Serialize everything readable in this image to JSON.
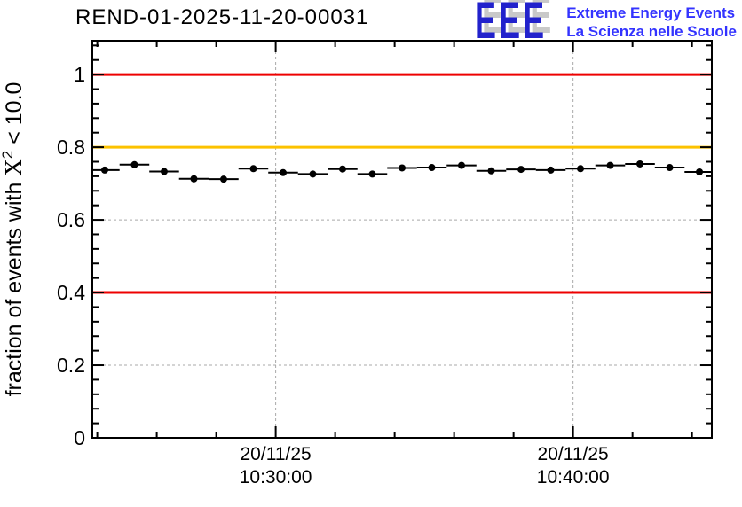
{
  "page": {
    "title": "REND-01-2025-11-20-00031"
  },
  "logo": {
    "letters": "EEE",
    "line1": "Extreme Energy Events",
    "line2": "La Scienza nelle Scuole",
    "letter_color": "#2222cc",
    "text_color": "#3333ff",
    "shadow_color": "#c9c9c9"
  },
  "chart_data": {
    "type": "scatter",
    "title": "REND-01-2025-11-20-00031",
    "xlabel": "",
    "ylabel": "fraction of events with X² < 10.0",
    "ylabel_parts": {
      "pre": "fraction of events with ",
      "x": "X",
      "sup": "2",
      "post": " < 10.0"
    },
    "ylim": [
      0,
      1.093
    ],
    "x_axis_start_time": "20/11/25 10:23:50",
    "x_axis_end_time": "20/11/25 10:44:40",
    "x_range_seconds": [
      0,
      1250
    ],
    "x_major_ticks": [
      {
        "seconds": 370,
        "label_line1": "20/11/25",
        "label_line2": "10:30:00"
      },
      {
        "seconds": 970,
        "label_line1": "20/11/25",
        "label_line2": "10:40:00"
      }
    ],
    "x_minor_ticks_seconds": [
      10,
      130,
      250,
      490,
      610,
      730,
      850,
      1090,
      1210
    ],
    "y_major_ticks": [
      {
        "value": 0,
        "label": "0"
      },
      {
        "value": 0.2,
        "label": "0.2"
      },
      {
        "value": 0.4,
        "label": "0.4"
      },
      {
        "value": 0.6,
        "label": "0.6"
      },
      {
        "value": 0.8,
        "label": "0.8"
      },
      {
        "value": 1,
        "label": "1"
      }
    ],
    "y_minor_step": 0.04,
    "grid": {
      "horizontal_values": [
        0.2,
        0.4,
        0.6,
        0.8,
        1.0
      ],
      "vertical_seconds": [
        370,
        970
      ],
      "color": "#a9a9a9",
      "style": "dashed"
    },
    "reference_lines": [
      {
        "value": 1.0,
        "color": "#ee0000"
      },
      {
        "value": 0.8,
        "color": "#fcc200"
      },
      {
        "value": 0.4,
        "color": "#ee0000"
      }
    ],
    "series": [
      {
        "name": "fraction of events with chi2 < 10.0",
        "marker": "filled-circle",
        "color": "#000000",
        "bin_half_width_seconds": 30,
        "y_error": 0.005,
        "points": [
          {
            "time": "10:24:15",
            "seconds": 25,
            "value": 0.737
          },
          {
            "time": "10:25:15",
            "seconds": 85,
            "value": 0.752
          },
          {
            "time": "10:26:15",
            "seconds": 145,
            "value": 0.733
          },
          {
            "time": "10:27:15",
            "seconds": 205,
            "value": 0.713
          },
          {
            "time": "10:28:15",
            "seconds": 265,
            "value": 0.712
          },
          {
            "time": "10:29:15",
            "seconds": 325,
            "value": 0.741
          },
          {
            "time": "10:30:15",
            "seconds": 385,
            "value": 0.73
          },
          {
            "time": "10:31:15",
            "seconds": 445,
            "value": 0.726
          },
          {
            "time": "10:32:15",
            "seconds": 505,
            "value": 0.74
          },
          {
            "time": "10:33:15",
            "seconds": 565,
            "value": 0.726
          },
          {
            "time": "10:34:15",
            "seconds": 625,
            "value": 0.743
          },
          {
            "time": "10:35:15",
            "seconds": 685,
            "value": 0.744
          },
          {
            "time": "10:36:15",
            "seconds": 745,
            "value": 0.75
          },
          {
            "time": "10:37:15",
            "seconds": 805,
            "value": 0.735
          },
          {
            "time": "10:38:15",
            "seconds": 865,
            "value": 0.739
          },
          {
            "time": "10:39:15",
            "seconds": 925,
            "value": 0.737
          },
          {
            "time": "10:40:15",
            "seconds": 985,
            "value": 0.741
          },
          {
            "time": "10:41:15",
            "seconds": 1045,
            "value": 0.75
          },
          {
            "time": "10:42:15",
            "seconds": 1105,
            "value": 0.754
          },
          {
            "time": "10:43:15",
            "seconds": 1165,
            "value": 0.744
          },
          {
            "time": "10:44:15",
            "seconds": 1225,
            "value": 0.732
          }
        ]
      }
    ]
  }
}
